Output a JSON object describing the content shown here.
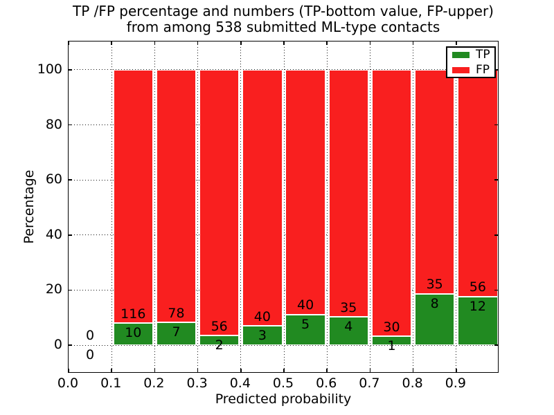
{
  "chart_data": {
    "type": "bar",
    "stacked": true,
    "title_lines": [
      "TP /FP percentage and numbers (TP-bottom value, FP-upper)",
      "from among 538 submitted ML-type contacts"
    ],
    "xlabel": "Predicted probability",
    "ylabel": "Percentage",
    "xlim": [
      0.0,
      1.0
    ],
    "ylim": [
      -10.3,
      110.3
    ],
    "grid": true,
    "grid_style": "dotted",
    "legend_position": "upper right",
    "bar_width": 0.092,
    "colors": {
      "tp": "#218a21",
      "fp": "#f91f1f",
      "edge": "#ffffff",
      "text": "#000000",
      "background": "#ffffff"
    },
    "series": [
      {
        "name": "TP",
        "color": "#218a21"
      },
      {
        "name": "FP",
        "color": "#f91f1f"
      }
    ],
    "xticks": [
      {
        "value": 0.0,
        "label": "0.0"
      },
      {
        "value": 0.1,
        "label": "0.1"
      },
      {
        "value": 0.2,
        "label": "0.2"
      },
      {
        "value": 0.3,
        "label": "0.3"
      },
      {
        "value": 0.4,
        "label": "0.4"
      },
      {
        "value": 0.5,
        "label": "0.5"
      },
      {
        "value": 0.6,
        "label": "0.6"
      },
      {
        "value": 0.7,
        "label": "0.7"
      },
      {
        "value": 0.8,
        "label": "0.8"
      },
      {
        "value": 0.9,
        "label": "0.9"
      }
    ],
    "yticks": [
      {
        "value": 0,
        "label": "0"
      },
      {
        "value": 20,
        "label": "20"
      },
      {
        "value": 40,
        "label": "40"
      },
      {
        "value": 60,
        "label": "60"
      },
      {
        "value": 80,
        "label": "80"
      },
      {
        "value": 100,
        "label": "100"
      }
    ],
    "bins": [
      {
        "x_start": 0.0,
        "x_end": 0.1,
        "tp_count": 0,
        "fp_count": 0,
        "tp_pct": 0.0,
        "fp_pct": 0.0
      },
      {
        "x_start": 0.1,
        "x_end": 0.2,
        "tp_count": 10,
        "fp_count": 116,
        "tp_pct": 7.94,
        "fp_pct": 92.06
      },
      {
        "x_start": 0.2,
        "x_end": 0.3,
        "tp_count": 7,
        "fp_count": 78,
        "tp_pct": 8.24,
        "fp_pct": 91.76
      },
      {
        "x_start": 0.3,
        "x_end": 0.4,
        "tp_count": 2,
        "fp_count": 56,
        "tp_pct": 3.45,
        "fp_pct": 96.55
      },
      {
        "x_start": 0.4,
        "x_end": 0.5,
        "tp_count": 3,
        "fp_count": 40,
        "tp_pct": 6.98,
        "fp_pct": 93.02
      },
      {
        "x_start": 0.5,
        "x_end": 0.6,
        "tp_count": 5,
        "fp_count": 40,
        "tp_pct": 11.11,
        "fp_pct": 88.89
      },
      {
        "x_start": 0.6,
        "x_end": 0.7,
        "tp_count": 4,
        "fp_count": 35,
        "tp_pct": 10.26,
        "fp_pct": 89.74
      },
      {
        "x_start": 0.7,
        "x_end": 0.8,
        "tp_count": 1,
        "fp_count": 30,
        "tp_pct": 3.23,
        "fp_pct": 96.77
      },
      {
        "x_start": 0.8,
        "x_end": 0.9,
        "tp_count": 8,
        "fp_count": 35,
        "tp_pct": 18.6,
        "fp_pct": 81.4
      },
      {
        "x_start": 0.9,
        "x_end": 1.0,
        "tp_count": 12,
        "fp_count": 56,
        "tp_pct": 17.65,
        "fp_pct": 82.35
      }
    ]
  }
}
